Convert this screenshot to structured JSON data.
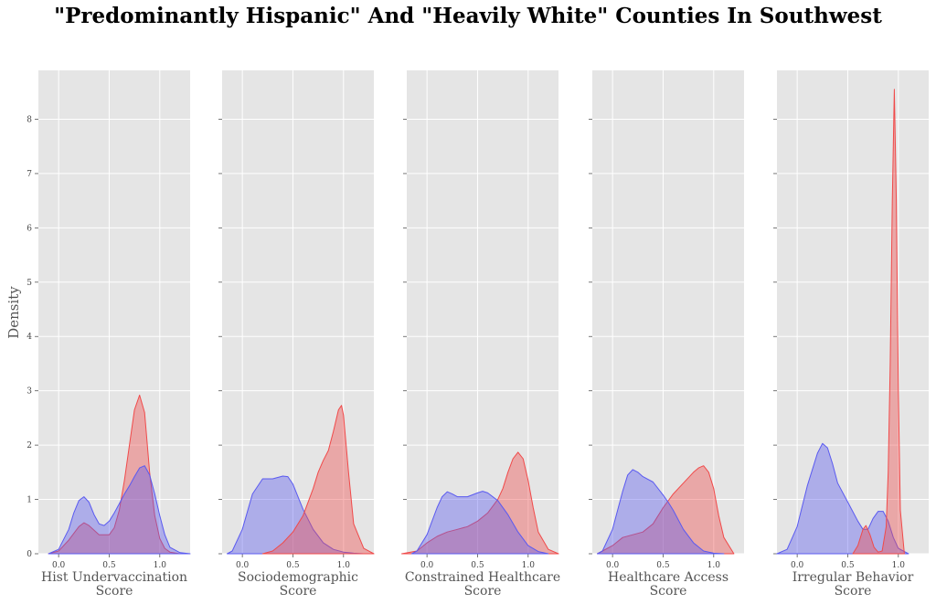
{
  "title": "\"Predominantly Hispanic\" And \"Heavily White\" Counties In Southwest",
  "colors": {
    "panel_bg": "#e5e5e5",
    "grid": "#ffffff",
    "red": "#f04a4a",
    "blue": "#5a5af0"
  },
  "chart_data": {
    "type": "area",
    "subtype": "kde-density",
    "ylabel": "Density",
    "ylim": [
      0,
      8.9
    ],
    "yticks": [
      "0",
      "1",
      "2",
      "3",
      "4",
      "5",
      "6",
      "7",
      "8"
    ],
    "xlim": [
      -0.2,
      1.3
    ],
    "xticks": [
      "0.0",
      "0.5",
      "1.0"
    ],
    "grid": true,
    "panels": [
      {
        "xlabel_lines": [
          "Hist Undervaccination",
          "Score"
        ],
        "series": [
          {
            "color": "red",
            "x": [
              -0.1,
              0.0,
              0.1,
              0.2,
              0.25,
              0.3,
              0.4,
              0.5,
              0.55,
              0.6,
              0.65,
              0.7,
              0.75,
              0.8,
              0.85,
              0.9,
              0.95,
              1.0,
              1.05,
              1.1,
              1.2
            ],
            "y": [
              0,
              0.05,
              0.25,
              0.5,
              0.57,
              0.52,
              0.35,
              0.35,
              0.48,
              0.8,
              1.35,
              2.0,
              2.65,
              2.92,
              2.6,
              1.5,
              0.7,
              0.28,
              0.1,
              0.03,
              0
            ]
          },
          {
            "color": "blue",
            "x": [
              -0.1,
              0.0,
              0.1,
              0.15,
              0.2,
              0.25,
              0.3,
              0.35,
              0.4,
              0.45,
              0.5,
              0.55,
              0.6,
              0.65,
              0.7,
              0.75,
              0.8,
              0.85,
              0.9,
              0.95,
              1.0,
              1.05,
              1.1,
              1.2,
              1.3
            ],
            "y": [
              0,
              0.08,
              0.45,
              0.75,
              0.98,
              1.05,
              0.95,
              0.72,
              0.55,
              0.52,
              0.6,
              0.75,
              0.92,
              1.1,
              1.25,
              1.42,
              1.58,
              1.62,
              1.45,
              1.1,
              0.7,
              0.35,
              0.12,
              0.02,
              0
            ]
          }
        ]
      },
      {
        "xlabel_lines": [
          "Sociodemographic",
          "Score"
        ],
        "series": [
          {
            "color": "blue",
            "x": [
              -0.15,
              -0.1,
              0.0,
              0.1,
              0.2,
              0.3,
              0.4,
              0.45,
              0.5,
              0.6,
              0.7,
              0.8,
              0.9,
              1.0,
              1.1,
              1.2
            ],
            "y": [
              0,
              0.05,
              0.45,
              1.1,
              1.38,
              1.38,
              1.43,
              1.42,
              1.28,
              0.82,
              0.45,
              0.2,
              0.08,
              0.03,
              0.01,
              0
            ]
          },
          {
            "color": "red",
            "x": [
              0.2,
              0.3,
              0.4,
              0.5,
              0.6,
              0.7,
              0.75,
              0.8,
              0.85,
              0.9,
              0.95,
              0.98,
              1.0,
              1.05,
              1.1,
              1.2,
              1.3
            ],
            "y": [
              0,
              0.05,
              0.2,
              0.4,
              0.7,
              1.2,
              1.5,
              1.72,
              1.9,
              2.25,
              2.65,
              2.73,
              2.55,
              1.5,
              0.55,
              0.1,
              0
            ]
          }
        ]
      },
      {
        "xlabel_lines": [
          "Constrained Healthcare",
          "Score"
        ],
        "series": [
          {
            "color": "red",
            "x": [
              -0.25,
              -0.1,
              0.0,
              0.1,
              0.2,
              0.3,
              0.4,
              0.5,
              0.6,
              0.7,
              0.75,
              0.8,
              0.85,
              0.9,
              0.95,
              1.0,
              1.05,
              1.1,
              1.2,
              1.3
            ],
            "y": [
              0,
              0.05,
              0.2,
              0.32,
              0.4,
              0.45,
              0.5,
              0.6,
              0.75,
              1.0,
              1.2,
              1.5,
              1.75,
              1.87,
              1.75,
              1.35,
              0.85,
              0.4,
              0.08,
              0
            ]
          },
          {
            "color": "blue",
            "x": [
              -0.15,
              -0.1,
              0.0,
              0.1,
              0.15,
              0.2,
              0.25,
              0.3,
              0.4,
              0.5,
              0.55,
              0.6,
              0.7,
              0.8,
              0.9,
              1.0,
              1.1,
              1.2
            ],
            "y": [
              0,
              0.05,
              0.35,
              0.85,
              1.05,
              1.14,
              1.1,
              1.05,
              1.05,
              1.12,
              1.15,
              1.12,
              0.98,
              0.72,
              0.4,
              0.15,
              0.04,
              0
            ]
          }
        ]
      },
      {
        "xlabel_lines": [
          "Healthcare Access",
          "Score"
        ],
        "series": [
          {
            "color": "red",
            "x": [
              -0.15,
              -0.1,
              0.0,
              0.1,
              0.2,
              0.3,
              0.4,
              0.5,
              0.6,
              0.7,
              0.8,
              0.85,
              0.9,
              0.95,
              1.0,
              1.05,
              1.1,
              1.2
            ],
            "y": [
              0,
              0.05,
              0.15,
              0.3,
              0.35,
              0.4,
              0.55,
              0.85,
              1.1,
              1.3,
              1.5,
              1.58,
              1.62,
              1.5,
              1.2,
              0.7,
              0.3,
              0
            ]
          },
          {
            "color": "blue",
            "x": [
              -0.15,
              -0.1,
              0.0,
              0.1,
              0.15,
              0.2,
              0.25,
              0.3,
              0.4,
              0.5,
              0.55,
              0.6,
              0.7,
              0.8,
              0.9,
              1.0,
              1.1
            ],
            "y": [
              0,
              0.05,
              0.45,
              1.15,
              1.45,
              1.55,
              1.5,
              1.42,
              1.32,
              1.08,
              0.95,
              0.8,
              0.45,
              0.2,
              0.05,
              0.01,
              0
            ]
          }
        ]
      },
      {
        "xlabel_lines": [
          "Irregular Behavior",
          "Score"
        ],
        "series": [
          {
            "color": "blue",
            "x": [
              -0.2,
              -0.1,
              0.0,
              0.1,
              0.2,
              0.25,
              0.3,
              0.35,
              0.4,
              0.5,
              0.6,
              0.65,
              0.7,
              0.75,
              0.8,
              0.85,
              0.9,
              0.95,
              1.0,
              1.1
            ],
            "y": [
              0,
              0.08,
              0.5,
              1.25,
              1.85,
              2.03,
              1.95,
              1.65,
              1.3,
              0.95,
              0.6,
              0.45,
              0.45,
              0.65,
              0.78,
              0.78,
              0.6,
              0.3,
              0.1,
              0
            ]
          },
          {
            "color": "red",
            "x": [
              0.55,
              0.6,
              0.65,
              0.68,
              0.72,
              0.76,
              0.8,
              0.84,
              0.88,
              0.9,
              0.92,
              0.94,
              0.96,
              0.98,
              1.0,
              1.02,
              1.06
            ],
            "y": [
              0,
              0.15,
              0.45,
              0.52,
              0.35,
              0.12,
              0.03,
              0.05,
              0.5,
              1.5,
              3.5,
              6.5,
              8.55,
              6.5,
              3.0,
              0.8,
              0
            ]
          }
        ]
      }
    ]
  }
}
